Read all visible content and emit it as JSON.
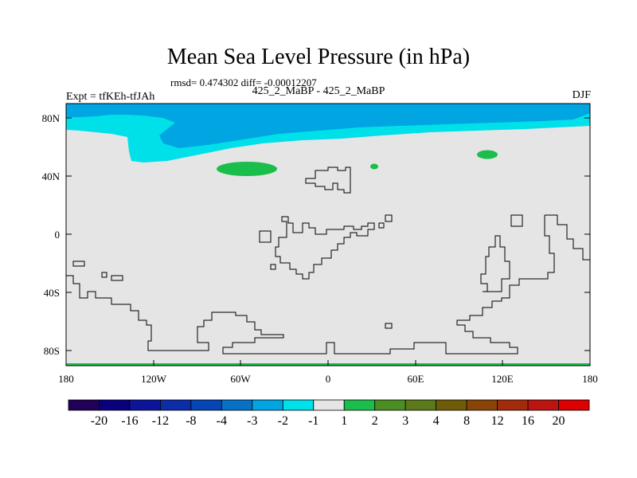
{
  "title": "Mean Sea Level Pressure (in hPa)",
  "stats": "rmsd= 0.474302 diff= -0.00012207",
  "subtitle": "425_2_MaBP - 425_2_MaBP",
  "left_label": "Expt = tfKEh-tfJAh",
  "right_label": "DJF",
  "map": {
    "x_ticks": [
      "180",
      "120W",
      "60W",
      "0",
      "60E",
      "120E",
      "180"
    ],
    "y_ticks": [
      "80N",
      "40N",
      "0",
      "40S",
      "80S"
    ],
    "colors": {
      "land_bg": "#e5e5e5",
      "dark_blue": "#00a5e2",
      "light_blue": "#00e0e8",
      "green": "#1bbe4a"
    }
  },
  "colorbar": {
    "labels": [
      "-20",
      "-16",
      "-12",
      "-8",
      "-4",
      "-3",
      "-2",
      "-1",
      "1",
      "2",
      "3",
      "4",
      "8",
      "12",
      "16",
      "20"
    ],
    "colors": [
      "#21005a",
      "#08007c",
      "#0c1498",
      "#0c2ca8",
      "#0645b4",
      "#0771c6",
      "#00a5e2",
      "#00e0e8",
      "#e5e5e5",
      "#1bbe4a",
      "#4b8e24",
      "#5a7a1c",
      "#705c08",
      "#8a4406",
      "#a42a0c",
      "#bc1410",
      "#dc0000"
    ]
  }
}
